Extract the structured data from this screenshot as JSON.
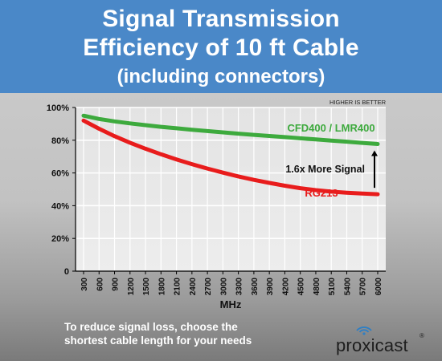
{
  "header": {
    "title_line1": "Signal Transmission",
    "title_line2": "Efficiency of 10 ft Cable",
    "subtitle": "(including connectors)"
  },
  "footer": {
    "note_line1": "To reduce signal loss, choose the",
    "note_line2": "shortest cable length for your needs"
  },
  "logo": {
    "text": "proxicast",
    "mark": "®",
    "icon": "wifi-signal-icon"
  },
  "colors": {
    "header_bg": "#4a88c8",
    "series_green": "#3daa3d",
    "series_red": "#e81c1c"
  },
  "chart_data": {
    "type": "line",
    "xlabel": "MHz",
    "ylabel": "",
    "ylim": [
      0,
      100
    ],
    "y_ticks": [
      "0",
      "20%",
      "40%",
      "60%",
      "80%",
      "100%"
    ],
    "x": [
      "300",
      "600",
      "900",
      "1200",
      "1500",
      "1800",
      "2100",
      "2400",
      "2700",
      "3000",
      "3300",
      "3600",
      "3900",
      "4200",
      "4500",
      "4800",
      "5100",
      "5400",
      "5700",
      "6000"
    ],
    "grid": true,
    "series": [
      {
        "name": "CFD400 / LMR400",
        "color": "#3daa3d",
        "values": [
          95,
          93,
          91.5,
          90.3,
          89.2,
          88.2,
          87.3,
          86.4,
          85.6,
          84.8,
          84.0,
          83.3,
          82.6,
          81.9,
          81.2,
          80.5,
          79.8,
          79.1,
          78.4,
          77.7
        ]
      },
      {
        "name": "RG213",
        "color": "#e81c1c",
        "values": [
          92,
          87,
          82.5,
          78.5,
          74.8,
          71.4,
          68.3,
          65.4,
          62.7,
          60.2,
          57.9,
          55.8,
          53.9,
          52.2,
          50.7,
          49.5,
          48.6,
          47.9,
          47.4,
          47
        ]
      }
    ],
    "annotations": {
      "higher_is_better": "HIGHER IS BETTER",
      "comparison": "1.6x More Signal"
    }
  }
}
